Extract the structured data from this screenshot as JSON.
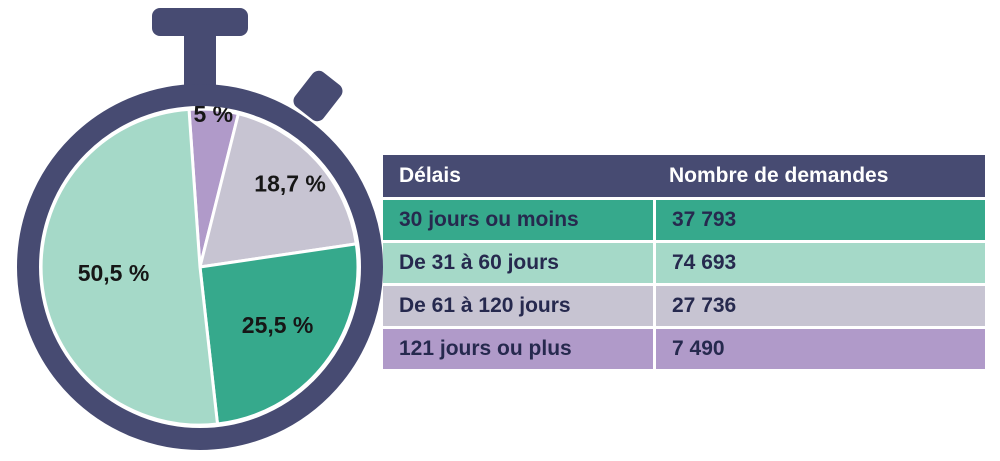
{
  "colors": {
    "navy": "#474b72",
    "teal": "#36a98c",
    "mint": "#a5d9c8",
    "gray": "#c7c4d2",
    "purple": "#b09ac9",
    "row_text": "#26294e",
    "label_text": "#161616",
    "header_text": "#ffffff"
  },
  "chart_data": {
    "type": "pie",
    "title": "",
    "legend_position": "none",
    "start_angle_deg": -4,
    "direction": "clockwise",
    "labels": [
      "5 %",
      "18,7 %",
      "25,5 %",
      "50,5 %"
    ],
    "values": [
      5,
      18.7,
      25.5,
      50.5
    ],
    "segments": [
      {
        "label": "5 %",
        "value": 5,
        "color_key": "purple"
      },
      {
        "label": "18,7 %",
        "value": 18.7,
        "color_key": "gray"
      },
      {
        "label": "25,5 %",
        "value": 25.5,
        "color_key": "teal"
      },
      {
        "label": "50,5 %",
        "value": 50.5,
        "color_key": "mint"
      }
    ]
  },
  "table": {
    "headers": [
      "Délais",
      "Nombre de demandes"
    ],
    "rows": [
      {
        "delai": "30 jours ou moins",
        "nombre": "37 793",
        "color_key": "teal"
      },
      {
        "delai": "De 31 à 60 jours",
        "nombre": "74 693",
        "color_key": "mint"
      },
      {
        "delai": "De 61 à 120 jours",
        "nombre": "27 736",
        "color_key": "gray"
      },
      {
        "delai": "121 jours ou plus",
        "nombre": "7 490",
        "color_key": "purple"
      }
    ]
  }
}
